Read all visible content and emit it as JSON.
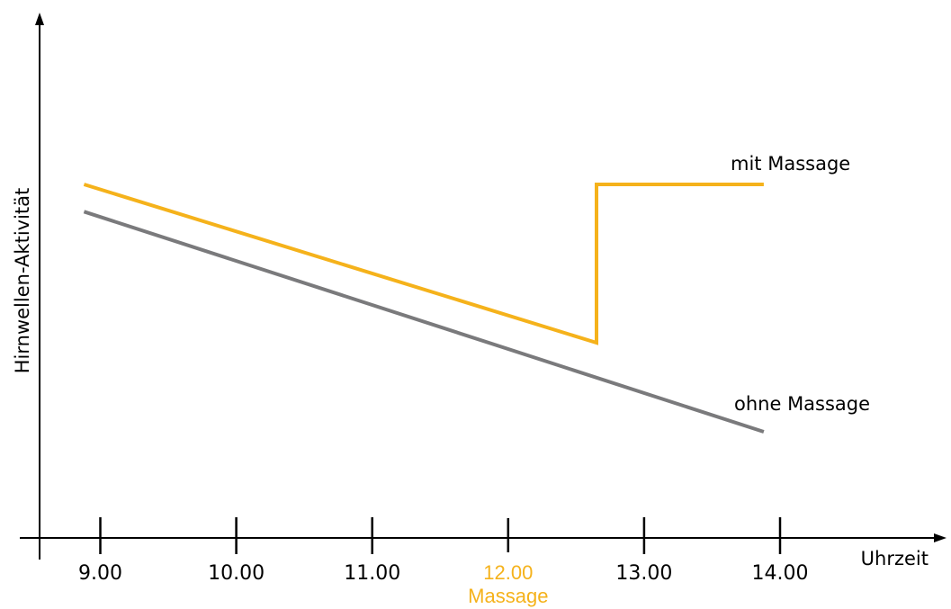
{
  "chart_data": {
    "type": "line",
    "title": "",
    "xlabel": "Uhrzeit",
    "ylabel": "Hirnwellen-Aktivität",
    "x_ticks": [
      "9.00",
      "10.00",
      "11.00",
      "12.00",
      "13.00",
      "14.00"
    ],
    "x_range": [
      8.5,
      15.2
    ],
    "y_range": [
      0,
      100
    ],
    "grid": false,
    "highlight": {
      "x": 12,
      "tick_label": "12.00",
      "label": "Massage",
      "color": "#f5b21b"
    },
    "series": [
      {
        "name": "mit Massage",
        "color": "#f5b21b",
        "points": [
          [
            8.88,
            70
          ],
          [
            12.65,
            38
          ],
          [
            12.65,
            70
          ],
          [
            13.88,
            70
          ]
        ]
      },
      {
        "name": "ohne Massage",
        "color": "#7a7a7c",
        "points": [
          [
            8.88,
            64.5
          ],
          [
            13.88,
            20
          ]
        ]
      }
    ]
  }
}
